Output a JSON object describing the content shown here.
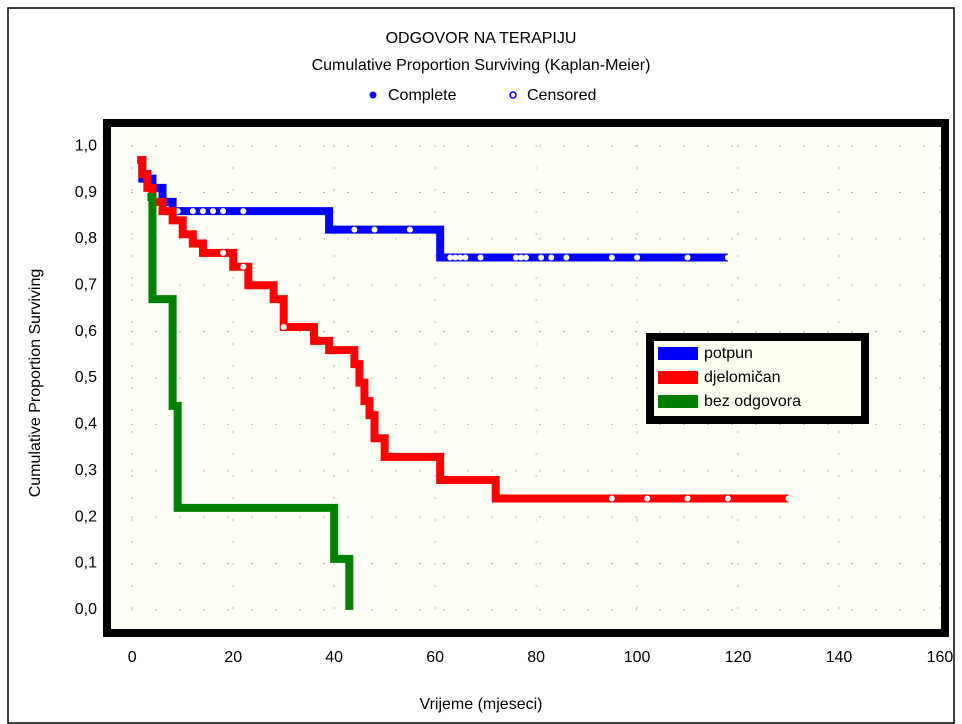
{
  "chart_data": {
    "type": "line",
    "title": "ODGOVOR NA TERAPIJU",
    "subtitle": "Cumulative Proportion Surviving (Kaplan-Meier)",
    "marker_legend": [
      "Complete",
      "Censored"
    ],
    "x_label": "Vrijeme (mjeseci)",
    "y_label": "Cumulative Proportion Surviving",
    "step": true,
    "legend": "right",
    "grid": true,
    "xlim": [
      -5,
      161
    ],
    "ylim": [
      -0.05,
      1.05
    ],
    "xticks": [
      0,
      20,
      40,
      60,
      80,
      100,
      120,
      140,
      160
    ],
    "yticks": [
      {
        "value": 0.0,
        "label": "0,0"
      },
      {
        "value": 0.1,
        "label": "0,1"
      },
      {
        "value": 0.2,
        "label": "0,2"
      },
      {
        "value": 0.3,
        "label": "0,3"
      },
      {
        "value": 0.4,
        "label": "0,4"
      },
      {
        "value": 0.5,
        "label": "0,5"
      },
      {
        "value": 0.6,
        "label": "0,6"
      },
      {
        "value": 0.7,
        "label": "0,7"
      },
      {
        "value": 0.8,
        "label": "0,8"
      },
      {
        "value": 0.9,
        "label": "0,9"
      },
      {
        "value": 1.0,
        "label": "1,0"
      }
    ],
    "series": [
      {
        "name": "potpun",
        "color": "#0000ff",
        "x": [
          1,
          2,
          4,
          6,
          8,
          39,
          61,
          118
        ],
        "values": [
          0.97,
          0.93,
          0.91,
          0.88,
          0.86,
          0.82,
          0.76,
          0.76
        ],
        "censored_x": [
          9,
          12,
          14,
          16,
          18,
          22,
          44,
          48,
          55,
          63,
          64,
          65,
          66,
          69,
          76,
          77,
          78,
          81,
          83,
          86,
          95,
          100,
          110,
          118
        ],
        "censored_y": [
          0.86,
          0.86,
          0.86,
          0.86,
          0.86,
          0.86,
          0.82,
          0.82,
          0.82,
          0.76,
          0.76,
          0.76,
          0.76,
          0.76,
          0.76,
          0.76,
          0.76,
          0.76,
          0.76,
          0.76,
          0.76,
          0.76,
          0.76,
          0.76
        ]
      },
      {
        "name": "djelomičan",
        "color": "#ff0000",
        "x": [
          1,
          2,
          3,
          4,
          6,
          8,
          10,
          12,
          14,
          20,
          23,
          28,
          30,
          36,
          39,
          44,
          45,
          46,
          47,
          48,
          50,
          61,
          72,
          130
        ],
        "values": [
          0.97,
          0.94,
          0.91,
          0.88,
          0.86,
          0.84,
          0.81,
          0.79,
          0.77,
          0.74,
          0.7,
          0.67,
          0.61,
          0.58,
          0.56,
          0.53,
          0.49,
          0.45,
          0.42,
          0.37,
          0.33,
          0.28,
          0.24,
          0.24
        ],
        "censored_x": [
          18,
          22,
          30,
          95,
          102,
          110,
          118,
          130
        ],
        "censored_y": [
          0.77,
          0.74,
          0.61,
          0.24,
          0.24,
          0.24,
          0.24,
          0.24
        ]
      },
      {
        "name": "bez odgovora",
        "color": "#008000",
        "x": [
          3,
          4,
          8,
          9,
          40,
          43
        ],
        "values": [
          0.89,
          0.67,
          0.44,
          0.22,
          0.11,
          0.0
        ],
        "censored_x": [],
        "censored_y": []
      }
    ]
  }
}
